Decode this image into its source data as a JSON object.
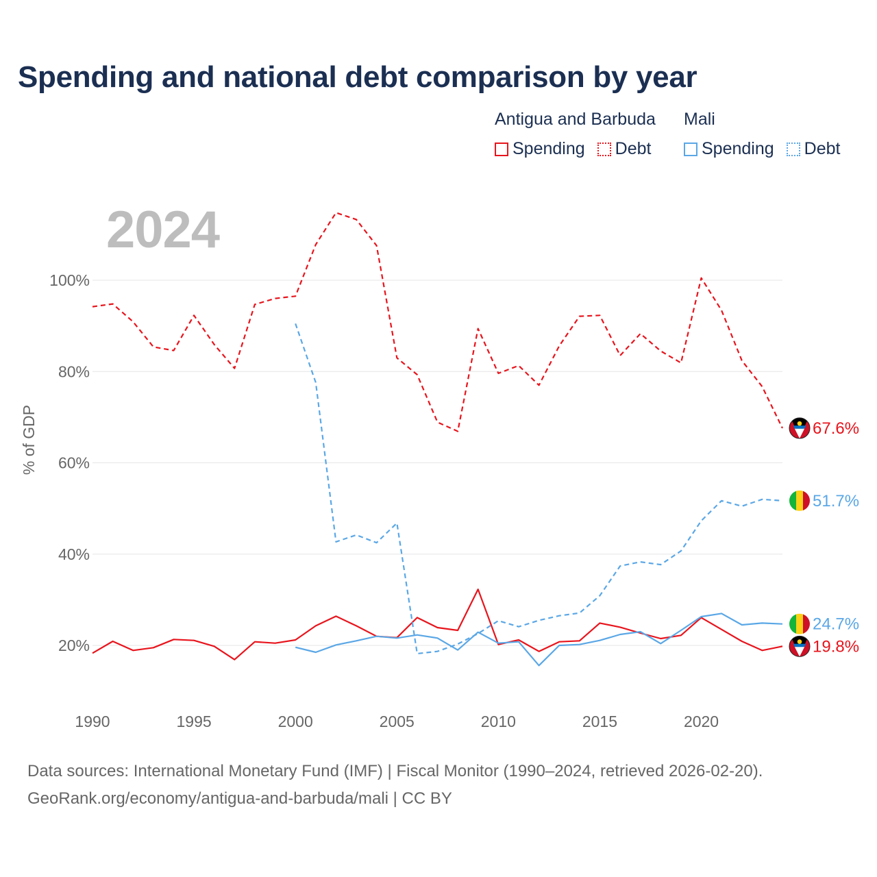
{
  "chart_data": {
    "type": "line",
    "title": "Spending and national debt comparison by year",
    "year_label": "2024",
    "ylabel": "% of GDP",
    "xlabel": "",
    "xlim": [
      1990,
      2024
    ],
    "ylim": [
      10,
      115
    ],
    "x_ticks": [
      1990,
      1995,
      2000,
      2005,
      2010,
      2015,
      2020
    ],
    "y_ticks": [
      20,
      40,
      60,
      80,
      100
    ],
    "y_tick_labels": [
      "20%",
      "40%",
      "60%",
      "80%",
      "100%"
    ],
    "legend": {
      "groups": [
        {
          "name": "Antigua and Barbuda",
          "items": [
            "Spending",
            "Debt"
          ]
        },
        {
          "name": "Mali",
          "items": [
            "Spending",
            "Debt"
          ]
        }
      ]
    },
    "colors": {
      "antigua": "#e8141c",
      "mali": "#5aa7e6"
    },
    "series": [
      {
        "name": "Antigua and Barbuda Debt",
        "country": "antigua",
        "style": "dashed",
        "x": [
          1990,
          1991,
          1992,
          1993,
          1994,
          1995,
          1996,
          1997,
          1998,
          1999,
          2000,
          2001,
          2002,
          2003,
          2004,
          2005,
          2006,
          2007,
          2008,
          2009,
          2010,
          2011,
          2012,
          2013,
          2014,
          2015,
          2016,
          2017,
          2018,
          2019,
          2020,
          2021,
          2022,
          2023,
          2024
        ],
        "values": [
          94.2,
          94.8,
          90.9,
          85.4,
          84.6,
          92.3,
          85.9,
          80.7,
          94.7,
          96.0,
          96.5,
          107.8,
          114.8,
          113.3,
          107.6,
          83.0,
          79.3,
          68.9,
          66.9,
          89.4,
          79.6,
          81.3,
          77.0,
          85.6,
          92.1,
          92.3,
          83.5,
          88.3,
          84.5,
          81.9,
          100.5,
          93.4,
          82.4,
          76.7,
          67.6
        ],
        "end_label": "67.6%"
      },
      {
        "name": "Antigua and Barbuda Spending",
        "country": "antigua",
        "style": "solid",
        "x": [
          1990,
          1991,
          1992,
          1993,
          1994,
          1995,
          1996,
          1997,
          1998,
          1999,
          2000,
          2001,
          2002,
          2003,
          2004,
          2005,
          2006,
          2007,
          2008,
          2009,
          2010,
          2011,
          2012,
          2013,
          2014,
          2015,
          2016,
          2017,
          2018,
          2019,
          2020,
          2021,
          2022,
          2023,
          2024
        ],
        "values": [
          18.3,
          20.9,
          18.9,
          19.5,
          21.3,
          21.1,
          19.8,
          16.9,
          20.8,
          20.5,
          21.2,
          24.3,
          26.4,
          24.3,
          22.0,
          21.7,
          26.1,
          23.9,
          23.3,
          32.3,
          20.2,
          21.2,
          18.7,
          20.8,
          21.0,
          24.9,
          24.0,
          22.7,
          21.5,
          22.2,
          26.1,
          23.5,
          20.9,
          18.9,
          19.8
        ],
        "end_label": "19.8%"
      },
      {
        "name": "Mali Debt",
        "country": "mali",
        "style": "dashed",
        "x": [
          2000,
          2001,
          2002,
          2003,
          2004,
          2005,
          2006,
          2007,
          2008,
          2009,
          2010,
          2011,
          2012,
          2013,
          2014,
          2015,
          2016,
          2017,
          2018,
          2019,
          2020,
          2021,
          2022,
          2023,
          2024
        ],
        "values": [
          90.5,
          77.6,
          42.7,
          44.2,
          42.5,
          46.8,
          18.2,
          18.7,
          20.3,
          22.6,
          25.4,
          24.1,
          25.5,
          26.5,
          27.1,
          30.9,
          37.4,
          38.3,
          37.7,
          40.7,
          47.3,
          51.7,
          50.5,
          52.0,
          51.7
        ],
        "end_label": "51.7%"
      },
      {
        "name": "Mali Spending",
        "country": "mali",
        "style": "solid",
        "x": [
          2000,
          2001,
          2002,
          2003,
          2004,
          2005,
          2006,
          2007,
          2008,
          2009,
          2010,
          2011,
          2012,
          2013,
          2014,
          2015,
          2016,
          2017,
          2018,
          2019,
          2020,
          2021,
          2022,
          2023,
          2024
        ],
        "values": [
          19.6,
          18.5,
          20.1,
          21.0,
          22.0,
          21.6,
          22.3,
          21.6,
          19.0,
          22.9,
          20.5,
          20.8,
          15.6,
          20.0,
          20.2,
          21.1,
          22.4,
          23.0,
          20.4,
          23.3,
          26.3,
          27.0,
          24.5,
          24.9,
          24.7
        ],
        "end_label": "24.7%"
      }
    ]
  },
  "footer": {
    "line1": "Data sources: International Monetary Fund (IMF) | Fiscal Monitor (1990–2024, retrieved 2026-02-20).",
    "line2": "GeoRank.org/economy/antigua-and-barbuda/mali | CC BY"
  }
}
